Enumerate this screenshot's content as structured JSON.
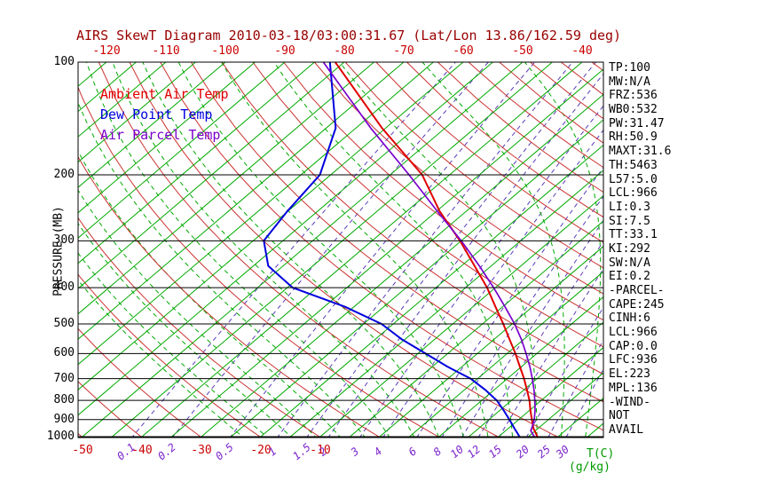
{
  "title": "AIRS SkewT Diagram 2010-03-18/03:00:31.67 (Lat/Lon 13.86/162.59 deg)",
  "units": {
    "temp": "T(C)",
    "mixing": "(g/kg)"
  },
  "colors": {
    "title": "#990000",
    "axis_red": "#cc0000",
    "isotherm": "#00aa00",
    "dry_adiabat": "#cc3333",
    "moist_adiabat": "#00aa00",
    "mixing_line": "#5a3db8",
    "mixing_label": "#7a22cc",
    "ambient": "#e00000",
    "dew": "#0000dd",
    "parcel": "#7a00cc",
    "unit_green": "#009900",
    "text": "#000000"
  },
  "legend": {
    "items": [
      {
        "key": "ambient",
        "label": "Ambient Air Temp",
        "color_key": "ambient"
      },
      {
        "key": "dew",
        "label": "Dew Point Temp",
        "color_key": "dew"
      },
      {
        "key": "parcel",
        "label": "Air Parcel Temp",
        "color_key": "parcel"
      }
    ]
  },
  "readouts": {
    "items": [
      "TP:100",
      "MW:N/A",
      "FRZ:536",
      "WB0:532",
      "PW:31.47",
      "RH:50.9",
      "MAXT:31.6",
      "TH:5463",
      "L57:5.0",
      "LCL:966",
      "LI:0.3",
      "SI:7.5",
      "TT:33.1",
      "KI:292",
      "SW:N/A",
      "EI:0.2",
      "-PARCEL-",
      "CAPE:245",
      "CINH:6",
      "LCL:966",
      "CAP:0.0",
      "LFC:936",
      "EL:223",
      "MPL:136",
      "-WIND-",
      "NOT",
      "AVAIL"
    ]
  },
  "chart_data": {
    "type": "line",
    "title": "AIRS SkewT Diagram 2010-03-18/03:00:31.67 (Lat/Lon 13.86/162.59 deg)",
    "x_axis": {
      "label": "T(C)",
      "top_tick_labels": [
        -120,
        -110,
        -100,
        -90,
        -80,
        -70,
        -60,
        -50,
        -40
      ],
      "bottom_tick_labels": [
        -50,
        -40,
        -30,
        -20,
        -10
      ]
    },
    "y_axis": {
      "label": "PRESSURE (MB)",
      "scale": "log",
      "ticks": [
        100,
        200,
        300,
        400,
        500,
        600,
        700,
        800,
        900,
        1000
      ]
    },
    "background": {
      "isotherms": {
        "min": -130,
        "max": 50,
        "step": 5
      },
      "dry_adiabats_theta_k": {
        "min": 213,
        "max": 453,
        "step": 10
      },
      "moist_adiabats_surface_c": {
        "min": -20,
        "max": 40,
        "step": 4
      },
      "mixing_ratios_g_kg": [
        0.1,
        0.2,
        0.5,
        1,
        1.5,
        2,
        3,
        4,
        6,
        8,
        10,
        12,
        15,
        20,
        25,
        30
      ],
      "pressure_lines_mb": [
        100,
        200,
        300,
        400,
        500,
        600,
        700,
        800,
        900,
        1000
      ]
    },
    "series": [
      {
        "name": "Ambient Air Temp",
        "color_key": "ambient",
        "points": [
          [
            1000,
            26.5
          ],
          [
            950,
            24.2
          ],
          [
            900,
            22.2
          ],
          [
            850,
            20.1
          ],
          [
            800,
            18.0
          ],
          [
            750,
            15.5
          ],
          [
            700,
            12.8
          ],
          [
            650,
            9.7
          ],
          [
            600,
            6.4
          ],
          [
            550,
            2.6
          ],
          [
            500,
            -1.5
          ],
          [
            450,
            -6.2
          ],
          [
            400,
            -11.4
          ],
          [
            350,
            -17.8
          ],
          [
            300,
            -25.2
          ],
          [
            250,
            -34.5
          ],
          [
            200,
            -44.6
          ],
          [
            150,
            -60.6
          ],
          [
            100,
            -81.5
          ]
        ]
      },
      {
        "name": "Dew Point Temp",
        "color_key": "dew",
        "points": [
          [
            1000,
            23.5
          ],
          [
            950,
            21.0
          ],
          [
            900,
            18.4
          ],
          [
            850,
            15.6
          ],
          [
            800,
            12.5
          ],
          [
            750,
            8.5
          ],
          [
            700,
            3.8
          ],
          [
            650,
            -2.5
          ],
          [
            600,
            -8.7
          ],
          [
            550,
            -15.5
          ],
          [
            500,
            -22.0
          ],
          [
            450,
            -31.5
          ],
          [
            400,
            -44.1
          ],
          [
            350,
            -52.5
          ],
          [
            300,
            -58.2
          ],
          [
            250,
            -60.1
          ],
          [
            200,
            -61.8
          ],
          [
            150,
            -68.4
          ],
          [
            100,
            -82.4
          ]
        ]
      },
      {
        "name": "Air Parcel Temp",
        "color_key": "parcel",
        "points": [
          [
            1000,
            26.0
          ],
          [
            966,
            24.3
          ],
          [
            900,
            22.6
          ],
          [
            850,
            20.9
          ],
          [
            800,
            18.9
          ],
          [
            750,
            16.7
          ],
          [
            700,
            14.2
          ],
          [
            650,
            11.4
          ],
          [
            600,
            8.2
          ],
          [
            550,
            4.6
          ],
          [
            500,
            0.4
          ],
          [
            450,
            -4.6
          ],
          [
            400,
            -10.3
          ],
          [
            350,
            -17.0
          ],
          [
            300,
            -25.0
          ],
          [
            250,
            -34.9
          ],
          [
            200,
            -46.8
          ],
          [
            150,
            -62.5
          ],
          [
            100,
            -83.5
          ]
        ]
      }
    ]
  }
}
